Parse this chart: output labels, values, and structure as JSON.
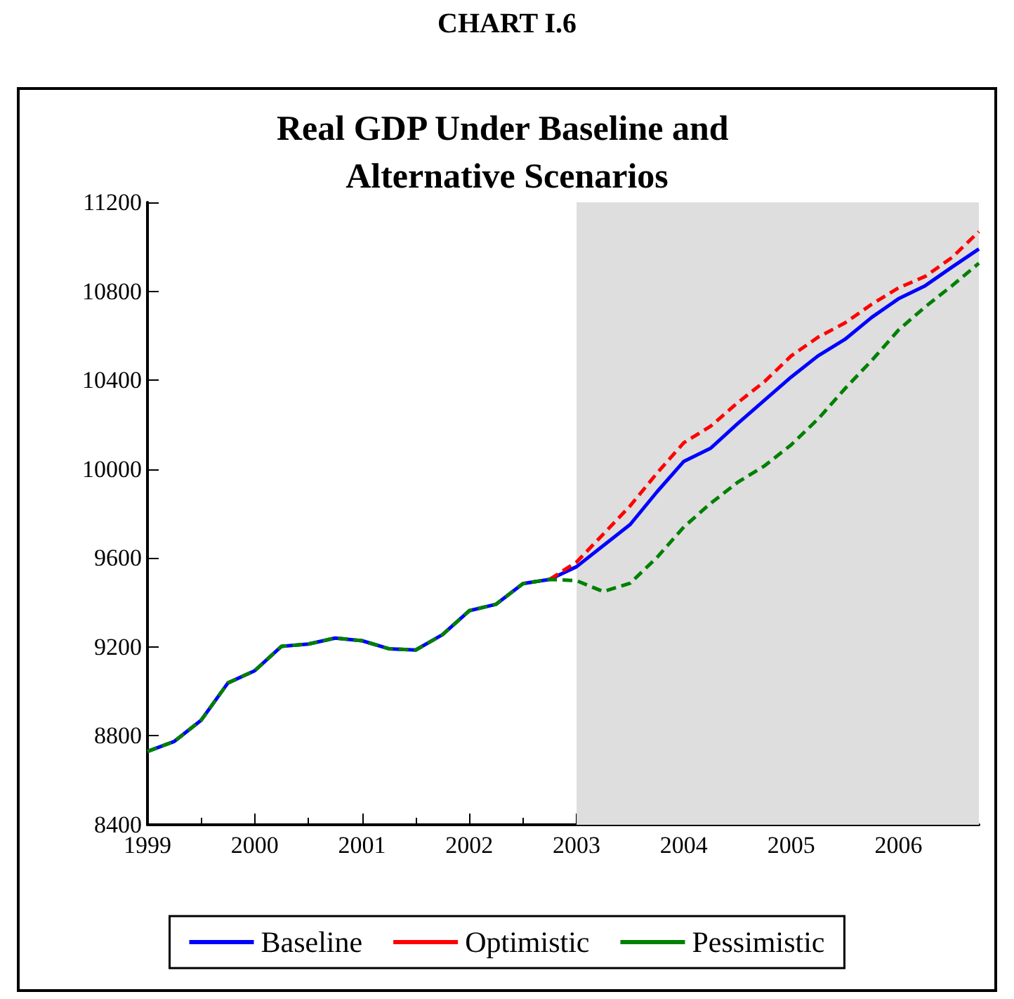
{
  "chart_data": {
    "type": "line",
    "title": "CHART I.6",
    "subtitle": "Real GDP Under Baseline and Alternative Scenarios",
    "x": [
      1999,
      1999.25,
      1999.5,
      1999.75,
      2000,
      2000.25,
      2000.5,
      2000.75,
      2001,
      2001.25,
      2001.5,
      2001.75,
      2002,
      2002.25,
      2002.5,
      2002.75,
      2003,
      2003.25,
      2003.5,
      2003.75,
      2004,
      2004.25,
      2004.5,
      2004.75,
      2005,
      2005.25,
      2005.5,
      2005.75,
      2006,
      2006.25,
      2006.5,
      2006.75
    ],
    "series": [
      {
        "name": "Baseline",
        "color": "#0000ff",
        "line_style": "solid",
        "values": [
          8730,
          8775,
          8870,
          9038,
          9093,
          9203,
          9213,
          9240,
          9228,
          9192,
          9186,
          9255,
          9363,
          9392,
          9485,
          9504,
          9561,
          9656,
          9751,
          9898,
          10035,
          10094,
          10204,
          10309,
          10414,
          10509,
          10583,
          10682,
          10766,
          10825,
          10909,
          10990
        ]
      },
      {
        "name": "Optimistic",
        "color": "#ff0000",
        "line_style": "dashed",
        "values": [
          null,
          null,
          null,
          null,
          null,
          null,
          null,
          null,
          null,
          null,
          null,
          null,
          null,
          null,
          null,
          9504,
          9582,
          9708,
          9835,
          9982,
          10119,
          10193,
          10298,
          10393,
          10509,
          10593,
          10657,
          10741,
          10815,
          10867,
          10952,
          11068
        ]
      },
      {
        "name": "Pessimistic",
        "color": "#008000",
        "line_style": "dashed",
        "values": [
          8730,
          8775,
          8870,
          9038,
          9093,
          9203,
          9213,
          9240,
          9228,
          9192,
          9186,
          9255,
          9363,
          9392,
          9485,
          9504,
          9498,
          9449,
          9487,
          9603,
          9740,
          9846,
          9940,
          10014,
          10109,
          10225,
          10361,
          10488,
          10625,
          10730,
          10825,
          10926
        ]
      }
    ],
    "xlim": [
      1999,
      2006.75
    ],
    "xticks": [
      1999,
      2000,
      2001,
      2002,
      2003,
      2004,
      2005,
      2006
    ],
    "ylim": [
      8400,
      11200
    ],
    "yticks": [
      8400,
      8800,
      9200,
      9600,
      10000,
      10400,
      10800,
      11200
    ],
    "bands": [
      {
        "axis": "x",
        "from": 2003,
        "to": 2006.75,
        "color": "#dedede"
      }
    ],
    "grid": false,
    "legend": "bottom",
    "marker": "none"
  }
}
